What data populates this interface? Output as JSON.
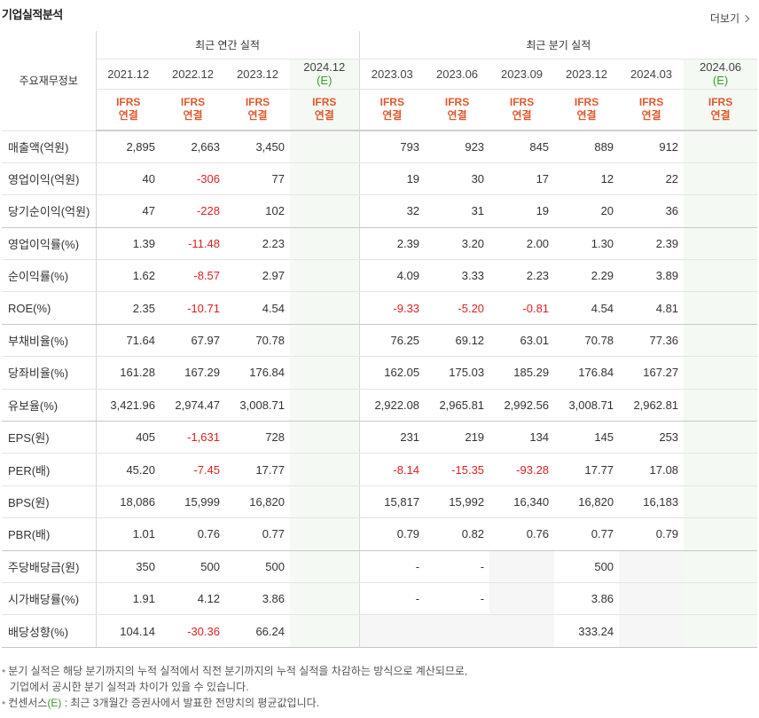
{
  "header": {
    "title": "기업실적분석",
    "more_label": "더보기"
  },
  "table": {
    "corner_label": "주요재무정보",
    "annual_group": "최근 연간 실적",
    "quarter_group": "최근 분기 실적",
    "annual_periods": [
      "2021.12",
      "2022.12",
      "2023.12",
      "2024.12"
    ],
    "quarter_periods": [
      "2023.03",
      "2023.06",
      "2023.09",
      "2023.12",
      "2024.03",
      "2024.06"
    ],
    "estimate_mark": "(E)",
    "ifrs_label": "IFRS",
    "consolidated_label": "연결",
    "rows": [
      {
        "label": "매출액(억원)",
        "annual": [
          "2,895",
          "2,663",
          "3,450",
          ""
        ],
        "quarter": [
          "793",
          "923",
          "845",
          "889",
          "912",
          ""
        ]
      },
      {
        "label": "영업이익(억원)",
        "annual": [
          "40",
          "-306",
          "77",
          ""
        ],
        "quarter": [
          "19",
          "30",
          "17",
          "12",
          "22",
          ""
        ]
      },
      {
        "label": "당기순이익(억원)",
        "annual": [
          "47",
          "-228",
          "102",
          ""
        ],
        "quarter": [
          "32",
          "31",
          "19",
          "20",
          "36",
          ""
        ]
      },
      {
        "label": "영업이익률(%)",
        "annual": [
          "1.39",
          "-11.48",
          "2.23",
          ""
        ],
        "quarter": [
          "2.39",
          "3.20",
          "2.00",
          "1.30",
          "2.39",
          ""
        ]
      },
      {
        "label": "순이익률(%)",
        "annual": [
          "1.62",
          "-8.57",
          "2.97",
          ""
        ],
        "quarter": [
          "4.09",
          "3.33",
          "2.23",
          "2.29",
          "3.89",
          ""
        ]
      },
      {
        "label": "ROE(%)",
        "annual": [
          "2.35",
          "-10.71",
          "4.54",
          ""
        ],
        "quarter": [
          "-9.33",
          "-5.20",
          "-0.81",
          "4.54",
          "4.81",
          ""
        ]
      },
      {
        "label": "부채비율(%)",
        "annual": [
          "71.64",
          "67.97",
          "70.78",
          ""
        ],
        "quarter": [
          "76.25",
          "69.12",
          "63.01",
          "70.78",
          "77.36",
          ""
        ]
      },
      {
        "label": "당좌비율(%)",
        "annual": [
          "161.28",
          "167.29",
          "176.84",
          ""
        ],
        "quarter": [
          "162.05",
          "175.03",
          "185.29",
          "176.84",
          "167.27",
          ""
        ]
      },
      {
        "label": "유보율(%)",
        "annual": [
          "3,421.96",
          "2,974.47",
          "3,008.71",
          ""
        ],
        "quarter": [
          "2,922.08",
          "2,965.81",
          "2,992.56",
          "3,008.71",
          "2,962.81",
          ""
        ]
      },
      {
        "label": "EPS(원)",
        "annual": [
          "405",
          "-1,631",
          "728",
          ""
        ],
        "quarter": [
          "231",
          "219",
          "134",
          "145",
          "253",
          ""
        ]
      },
      {
        "label": "PER(배)",
        "annual": [
          "45.20",
          "-7.45",
          "17.77",
          ""
        ],
        "quarter": [
          "-8.14",
          "-15.35",
          "-93.28",
          "17.77",
          "17.08",
          ""
        ]
      },
      {
        "label": "BPS(원)",
        "annual": [
          "18,086",
          "15,999",
          "16,820",
          ""
        ],
        "quarter": [
          "15,817",
          "15,992",
          "16,340",
          "16,820",
          "16,183",
          ""
        ]
      },
      {
        "label": "PBR(배)",
        "annual": [
          "1.01",
          "0.76",
          "0.77",
          ""
        ],
        "quarter": [
          "0.79",
          "0.82",
          "0.76",
          "0.77",
          "0.79",
          ""
        ]
      },
      {
        "label": "주당배당금(원)",
        "annual": [
          "350",
          "500",
          "500",
          ""
        ],
        "quarter": [
          "-",
          "-",
          "",
          "500",
          "",
          ""
        ]
      },
      {
        "label": "시가배당률(%)",
        "annual": [
          "1.91",
          "4.12",
          "3.86",
          ""
        ],
        "quarter": [
          "-",
          "-",
          "",
          "3.86",
          "",
          ""
        ]
      },
      {
        "label": "배당성향(%)",
        "annual": [
          "104.14",
          "-30.36",
          "66.24",
          ""
        ],
        "quarter": [
          "",
          "",
          "",
          "333.24",
          "",
          ""
        ]
      }
    ]
  },
  "notes": {
    "line1": "분기 실적은 해당 분기까지의 누적 실적에서 직전 분기까지의 누적 실적을 차감하는 방식으로 계산되므로,",
    "line2": "기업에서 공시한 분기 실적과 차이가 있을 수 있습니다.",
    "line3_prefix": "컨센서스",
    "line3_mark": "(E)",
    "line3_suffix": " : 최근 3개월간 증권사에서 발표한 전망치의 평균값입니다."
  },
  "colors": {
    "negative": "#dd2020",
    "ifrs": "#e0572c",
    "estimate": "#3a9c2a",
    "estimate_bg": "#f4f9f3"
  }
}
